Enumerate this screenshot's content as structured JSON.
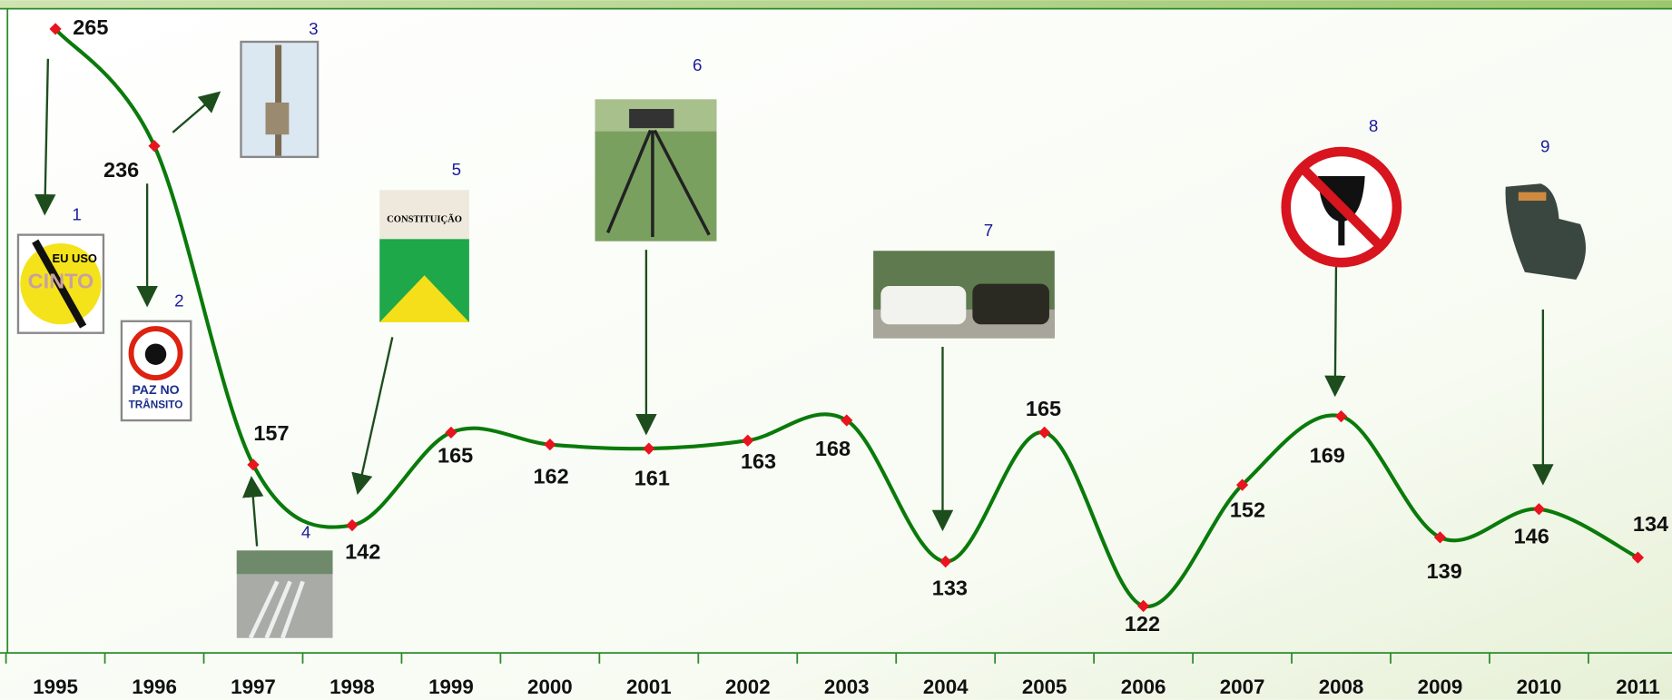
{
  "chart_data": {
    "type": "line",
    "categories": [
      "1995",
      "1996",
      "1997",
      "1998",
      "1999",
      "2000",
      "2001",
      "2002",
      "2003",
      "2004",
      "2005",
      "2006",
      "2007",
      "2008",
      "2009",
      "2010",
      "2011"
    ],
    "series": [
      {
        "color": "#0a7a0a",
        "values": [
          265,
          236,
          157,
          142,
          165,
          162,
          161,
          163,
          168,
          133,
          165,
          122,
          152,
          169,
          139,
          146,
          134
        ]
      }
    ],
    "marker_color": "#e8141e",
    "annotations": [
      {
        "label": "1",
        "text": [
          "EU USO",
          "CINTO"
        ]
      },
      {
        "label": "2",
        "text": [
          "PAZ NO",
          "TRÂNSITO"
        ]
      },
      {
        "label": "3"
      },
      {
        "label": "4"
      },
      {
        "label": "5",
        "text": [
          "CONSTITUIÇÃO"
        ]
      },
      {
        "label": "6"
      },
      {
        "label": "7"
      },
      {
        "label": "8"
      },
      {
        "label": "9"
      }
    ]
  }
}
